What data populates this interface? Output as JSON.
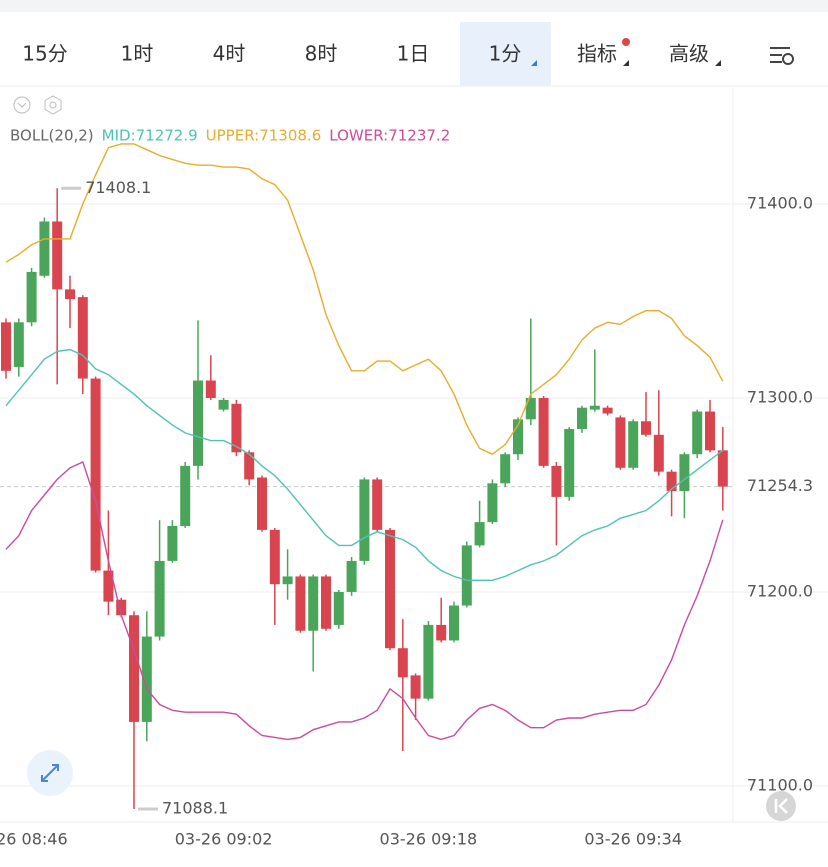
{
  "toolbar": {
    "tabs": [
      "15分",
      "1时",
      "4时",
      "8时",
      "1日",
      "1分",
      "指标",
      "高级"
    ],
    "active": 5
  },
  "chart_data": {
    "type": "candlestick",
    "indicator": "BOLL(20,2)",
    "categories": [
      null,
      "03-26 08:46",
      null,
      null,
      null,
      null,
      null,
      null,
      null,
      null,
      null,
      null,
      null,
      null,
      null,
      null,
      null,
      "03-26 09:02",
      null,
      null,
      null,
      null,
      null,
      null,
      null,
      null,
      null,
      null,
      null,
      null,
      null,
      null,
      null,
      "03-26 09:18",
      null,
      null,
      null,
      null,
      null,
      null,
      null,
      null,
      null,
      null,
      null,
      null,
      null,
      null,
      null,
      "03-26 09:34",
      null,
      null,
      null,
      null,
      null,
      null,
      null
    ],
    "open": [
      71339,
      71316,
      71339,
      71363,
      71391,
      71356,
      71352,
      71310,
      71211,
      71196,
      71188,
      71133,
      71177,
      71216,
      71234,
      71265,
      71309,
      71294,
      71297,
      71272,
      71259,
      71232,
      71204,
      71208,
      71180,
      71208,
      71183,
      71200,
      71216,
      71258,
      71232,
      71171,
      71157,
      71145,
      71183,
      71175,
      71193,
      71224,
      71236,
      71256,
      71271,
      71289,
      71300,
      71265,
      71249,
      71284,
      71294,
      71295,
      71290,
      71264,
      71288,
      71281,
      71262,
      71252,
      71271,
      71293,
      71273
    ],
    "high": [
      71341,
      71341,
      71367,
      71393,
      71408.1,
      71363,
      71353,
      71311,
      71242,
      71197,
      71190,
      71190,
      71237,
      71237,
      71267,
      71340,
      71322,
      71300,
      71299,
      71273,
      71260,
      71233,
      71222,
      71209,
      71209,
      71209,
      71201,
      71218,
      71259,
      71259,
      71233,
      71186,
      71158,
      71185,
      71197,
      71195,
      71226,
      71247,
      71258,
      71272,
      71290,
      71341,
      71301,
      71267,
      71285,
      71296,
      71325,
      71296,
      71291,
      71289,
      71303,
      71304,
      71263,
      71272,
      71294,
      71299,
      71285
    ],
    "low": [
      71310,
      71311,
      71337,
      71362,
      71307,
      71336,
      71302,
      71210,
      71188,
      71187,
      71088.1,
      71123,
      71175,
      71215,
      71233,
      71258,
      71299,
      71293,
      71270,
      71255,
      71231,
      71183,
      71196,
      71179,
      71159,
      71180,
      71181,
      71198,
      71214,
      71231,
      71170,
      71118,
      71134,
      71144,
      71174,
      71174,
      71192,
      71223,
      71235,
      71254,
      71268,
      71286,
      71264,
      71224,
      71247,
      71282,
      71293,
      71291,
      71263,
      71263,
      71280,
      71260,
      71239,
      71238,
      71269,
      71272,
      71242
    ],
    "close": [
      71314,
      71339,
      71365,
      71391,
      71356,
      71351,
      71310,
      71211,
      71195,
      71188,
      71133,
      71177,
      71216,
      71234,
      71265,
      71309,
      71300,
      71299,
      71272,
      71258,
      71232,
      71204,
      71208,
      71180,
      71208,
      71181,
      71200,
      71216,
      71258,
      71232,
      71171,
      71156,
      71145,
      71183,
      71175,
      71193,
      71224,
      71236,
      71256,
      71271,
      71289,
      71300,
      71265,
      71249,
      71284,
      71295,
      71296,
      71292,
      71264,
      71288,
      71281,
      71262,
      71252,
      71271,
      71293,
      71273,
      71254.3
    ],
    "up_color": "#4aa55a",
    "down_color": "#d8454f",
    "series": [
      {
        "name": "MID:71272.9",
        "color": "#4fc3b1",
        "values": [
          71296,
          71304,
          71312,
          71320,
          71324,
          71325,
          71322,
          71315,
          71312,
          71307,
          71302,
          71296,
          71291,
          71286,
          71282,
          71280,
          71278,
          71278,
          71275,
          71271,
          71265,
          71260,
          71253,
          71245,
          71237,
          71229,
          71224,
          71224,
          71228,
          71231,
          71229,
          71227,
          71223,
          71216,
          71211,
          71208,
          71206,
          71206,
          71206,
          71208,
          71211,
          71214,
          71216,
          71219,
          71224,
          71229,
          71232,
          71234,
          71238,
          71240,
          71242,
          71247,
          71253,
          71258,
          71263,
          71268,
          71272.9
        ]
      },
      {
        "name": "UPPER:71308.6",
        "color": "#e6ad2a",
        "values": [
          71370,
          71374,
          71379,
          71382,
          71382,
          71382,
          71400,
          71415,
          71429,
          71431,
          71431,
          71428,
          71425,
          71423,
          71421,
          71420,
          71420,
          71419,
          71419,
          71418,
          71413,
          71410,
          71402,
          71384,
          71366,
          71343,
          71327,
          71314,
          71314,
          71319,
          71319,
          71314,
          71317,
          71320,
          71314,
          71302,
          71286,
          71274,
          71271,
          71276,
          71286,
          71302,
          71307,
          71312,
          71320,
          71330,
          71336,
          71339,
          71338,
          71342,
          71345,
          71345,
          71341,
          71332,
          71327,
          71321,
          71308.6
        ]
      },
      {
        "name": "LOWER:71237.2",
        "color": "#cc4b9b",
        "values": [
          71222,
          71229,
          71242,
          71250,
          71258,
          71264,
          71267,
          71247,
          71216,
          71188,
          71170,
          71150,
          71142,
          71139,
          71138,
          71138,
          71138,
          71138,
          71137,
          71131,
          71126,
          71125,
          71124,
          71125,
          71129,
          71131,
          71133,
          71133,
          71135,
          71139,
          71150,
          71145,
          71135,
          71126,
          71124,
          71126,
          71134,
          71140,
          71142,
          71139,
          71134,
          71130,
          71130,
          71134,
          71135,
          71135,
          71137,
          71138,
          71139,
          71139,
          71142,
          71152,
          71165,
          71183,
          71198,
          71216,
          71237.2
        ]
      }
    ],
    "high_marker": 71408.1,
    "low_marker": 71088.1,
    "current_price": 71254.3,
    "ylim": [
      71081.4,
      71459.8
    ],
    "yticks": [
      {
        "value": 71100,
        "label": "71100.0"
      },
      {
        "value": 71200,
        "label": "71200.0"
      },
      {
        "value": 71300,
        "label": "71300.0"
      },
      {
        "value": 71400,
        "label": "71400.0"
      }
    ],
    "grid": true
  }
}
